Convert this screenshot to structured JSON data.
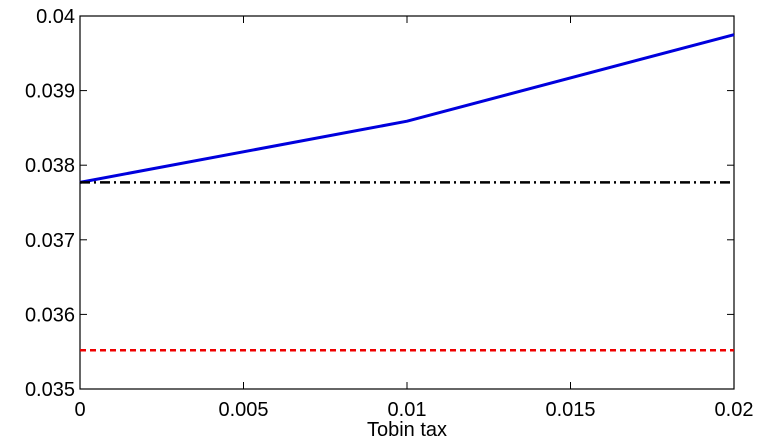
{
  "chart_data": {
    "type": "line",
    "title": "",
    "xlabel": "Tobin tax",
    "ylabel": "",
    "xlim": [
      0,
      0.02
    ],
    "ylim": [
      0.035,
      0.04
    ],
    "x_ticks": [
      "0",
      "0.005",
      "0.01",
      "0.015",
      "0.02"
    ],
    "y_ticks": [
      "0.035",
      "0.036",
      "0.037",
      "0.038",
      "0.039",
      "0.04"
    ],
    "grid": false,
    "legend": "none",
    "series": [
      {
        "color": "#0000dd",
        "style": "solid",
        "x": [
          0,
          0.01,
          0.02
        ],
        "y": [
          0.03777,
          0.03859,
          0.03975
        ]
      },
      {
        "color": "#000000",
        "style": "dash-dot",
        "x": [
          0,
          0.02
        ],
        "y": [
          0.03777,
          0.03777
        ]
      },
      {
        "color": "#ee0000",
        "style": "dashed",
        "x": [
          0,
          0.02
        ],
        "y": [
          0.03552,
          0.03552
        ]
      }
    ]
  }
}
